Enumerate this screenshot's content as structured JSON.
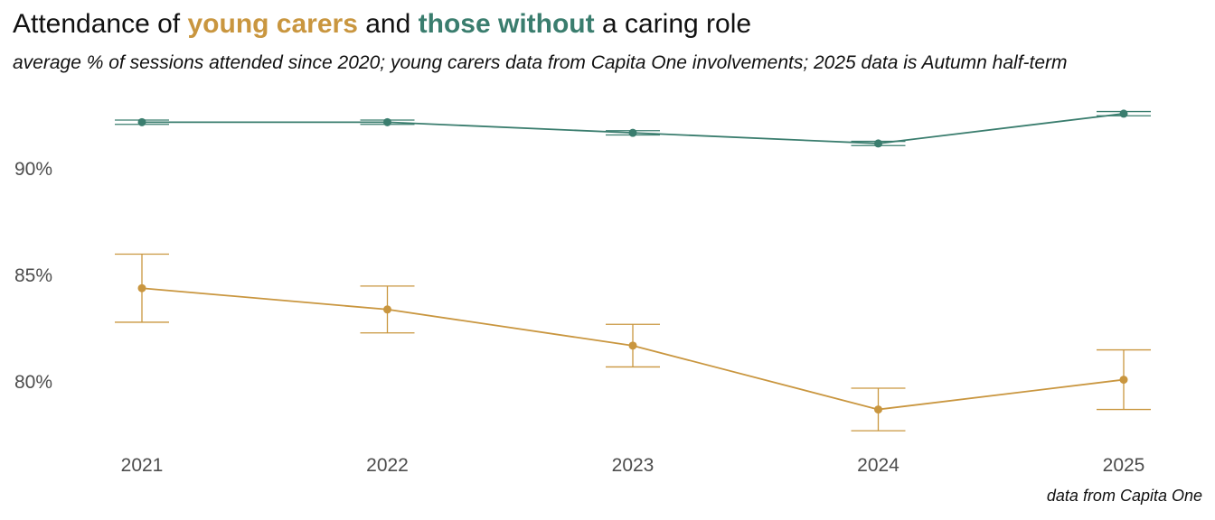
{
  "title": {
    "prefix": "Attendance of ",
    "highlight1": "young carers",
    "middle": " and ",
    "highlight2": "those without",
    "suffix": " a caring role"
  },
  "subtitle": "average % of sessions attended since 2020; young carers data from Capita One involvements; 2025 data is Autumn half-term",
  "caption": "data from Capita One",
  "colors": {
    "young_carers": "#C9963F",
    "those_without": "#3A7D6E"
  },
  "chart_data": {
    "type": "line",
    "x": [
      "2021",
      "2022",
      "2023",
      "2024",
      "2025"
    ],
    "ylim": [
      76.9,
      93.7
    ],
    "yticks": [
      80,
      85,
      90
    ],
    "ytick_labels": [
      "80%",
      "85%",
      "90%"
    ],
    "xlabel": "",
    "ylabel": "",
    "grid": false,
    "legend": "none",
    "series": [
      {
        "name": "young carers",
        "color": "#C9963F",
        "values": [
          84.4,
          83.4,
          81.7,
          78.7,
          80.1
        ],
        "lower": [
          82.8,
          82.3,
          80.7,
          77.7,
          78.7
        ],
        "upper": [
          86.0,
          84.5,
          82.7,
          79.7,
          81.5
        ]
      },
      {
        "name": "those without",
        "color": "#3A7D6E",
        "values": [
          92.2,
          92.2,
          91.7,
          91.2,
          92.6
        ],
        "lower": [
          92.1,
          92.1,
          91.6,
          91.1,
          92.5
        ],
        "upper": [
          92.3,
          92.3,
          91.8,
          91.3,
          92.7
        ]
      }
    ]
  }
}
